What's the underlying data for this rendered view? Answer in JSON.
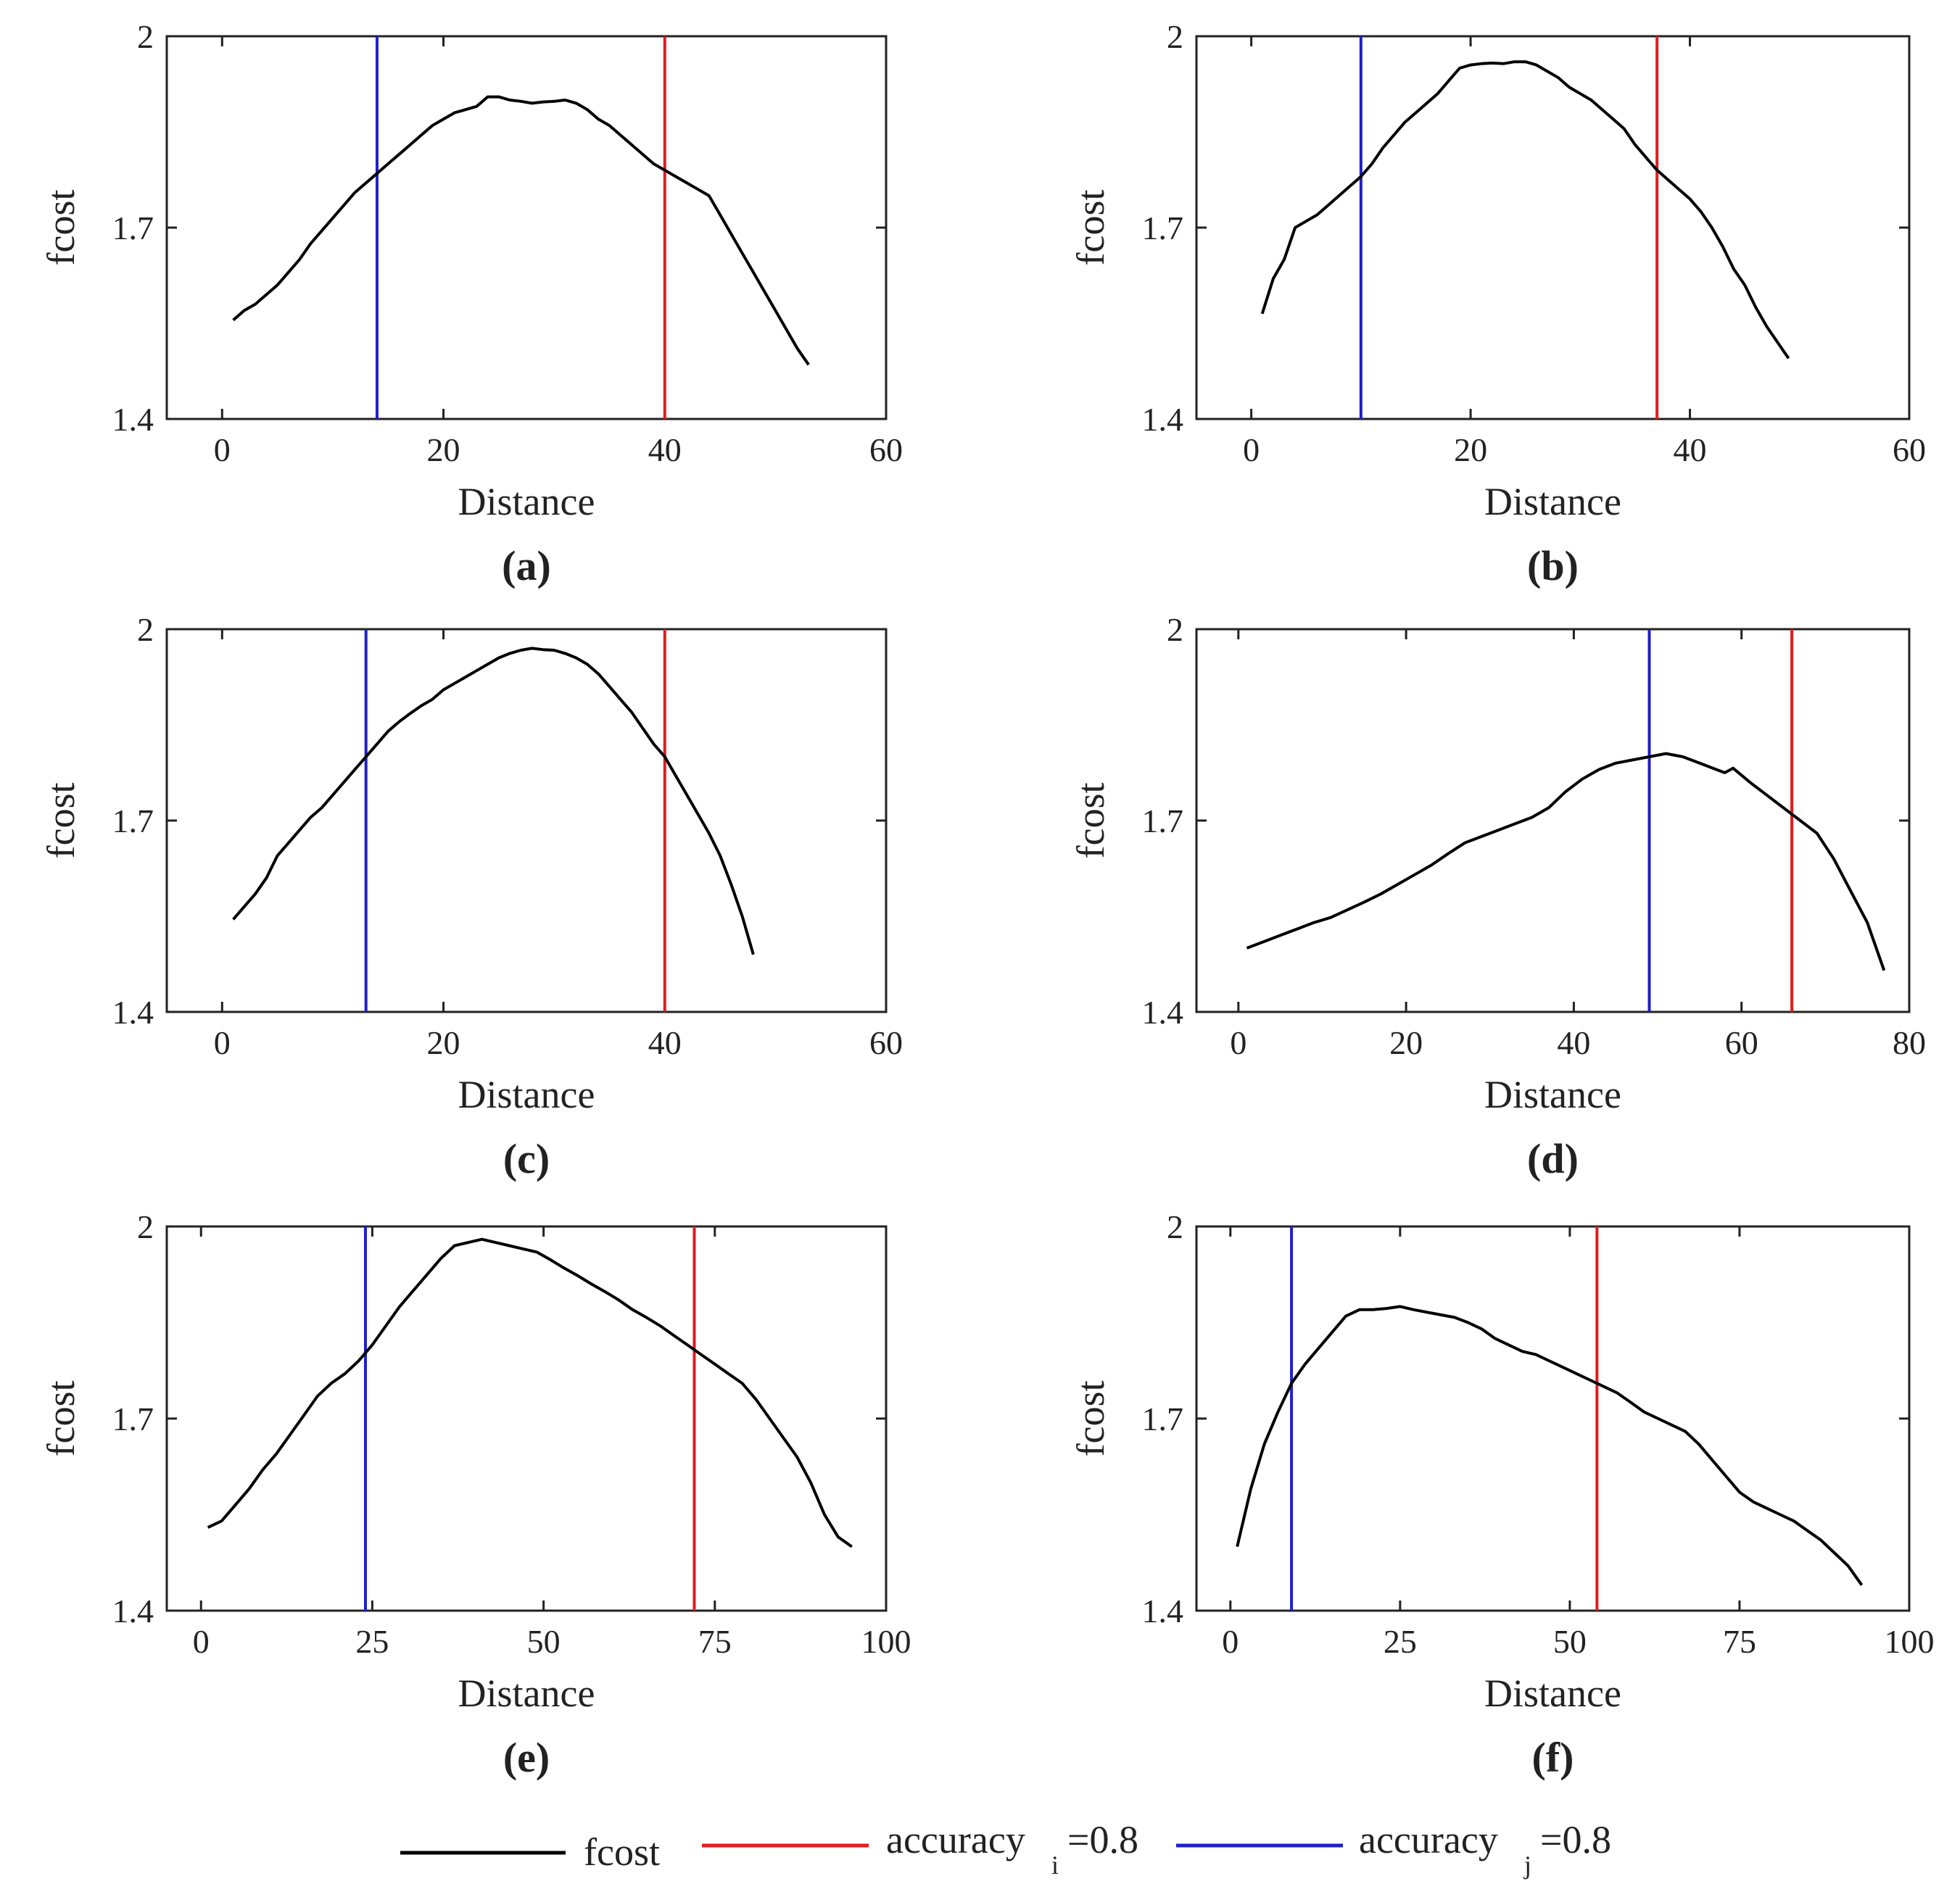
{
  "colors": {
    "fcost": "#000000",
    "accuracy_i": "#e41a1c",
    "accuracy_j": "#1f1fcc"
  },
  "legend": {
    "fcost": "fcost",
    "acc_i_main": "accuracy",
    "acc_i_sub": "i",
    "acc_i_rest": "=0.8",
    "acc_j_main": "accuracy",
    "acc_j_sub": "j",
    "acc_j_rest": "=0.8"
  },
  "chart_data": [
    {
      "panel": "(a)",
      "type": "line",
      "xlabel": "Distance",
      "ylabel": "fcost",
      "xlim": [
        -5,
        60
      ],
      "ylim": [
        1.4,
        2.0
      ],
      "xticks": [
        0,
        20,
        40,
        60
      ],
      "yticks": [
        1.4,
        1.7,
        2.0
      ],
      "ytick_labels": [
        "1.4",
        "1.7",
        "2"
      ],
      "vline_j": 14,
      "vline_i": 40,
      "series": [
        {
          "name": "fcost",
          "x": [
            1,
            2,
            3,
            4,
            5,
            6,
            7,
            8,
            9,
            10,
            11,
            12,
            13,
            14,
            15,
            16,
            17,
            18,
            19,
            20,
            21,
            22,
            23,
            24,
            25,
            26,
            27,
            28,
            29,
            30,
            31,
            32,
            33,
            34,
            35,
            36,
            37,
            38,
            39,
            40,
            41,
            42,
            43,
            44,
            45,
            46,
            47,
            48,
            49,
            50,
            51,
            52,
            53
          ],
          "y": [
            1.555,
            1.57,
            1.58,
            1.595,
            1.61,
            1.63,
            1.65,
            1.675,
            1.695,
            1.715,
            1.735,
            1.755,
            1.77,
            1.785,
            1.8,
            1.815,
            1.83,
            1.845,
            1.86,
            1.87,
            1.88,
            1.885,
            1.89,
            1.905,
            1.905,
            1.9,
            1.898,
            1.895,
            1.897,
            1.898,
            1.9,
            1.895,
            1.885,
            1.87,
            1.86,
            1.845,
            1.83,
            1.815,
            1.8,
            1.79,
            1.78,
            1.77,
            1.76,
            1.75,
            1.72,
            1.69,
            1.66,
            1.63,
            1.6,
            1.57,
            1.54,
            1.51,
            1.485
          ]
        }
      ]
    },
    {
      "panel": "(b)",
      "type": "line",
      "xlabel": "Distance",
      "ylabel": "fcost",
      "xlim": [
        -5,
        60
      ],
      "ylim": [
        1.4,
        2.0
      ],
      "xticks": [
        0,
        20,
        40,
        60
      ],
      "yticks": [
        1.4,
        1.7,
        2.0
      ],
      "ytick_labels": [
        "1.4",
        "1.7",
        "2"
      ],
      "vline_j": 10,
      "vline_i": 37,
      "series": [
        {
          "name": "fcost",
          "x": [
            1,
            2,
            3,
            4,
            5,
            6,
            7,
            8,
            9,
            10,
            11,
            12,
            13,
            14,
            15,
            16,
            17,
            18,
            19,
            20,
            21,
            22,
            23,
            24,
            25,
            26,
            27,
            28,
            29,
            30,
            31,
            32,
            33,
            34,
            35,
            36,
            37,
            38,
            39,
            40,
            41,
            42,
            43,
            44,
            45,
            46,
            47,
            48,
            49
          ],
          "y": [
            1.565,
            1.62,
            1.65,
            1.7,
            1.71,
            1.72,
            1.735,
            1.75,
            1.765,
            1.78,
            1.8,
            1.825,
            1.845,
            1.865,
            1.88,
            1.895,
            1.91,
            1.93,
            1.95,
            1.955,
            1.957,
            1.958,
            1.957,
            1.96,
            1.96,
            1.955,
            1.945,
            1.935,
            1.92,
            1.91,
            1.9,
            1.885,
            1.87,
            1.855,
            1.83,
            1.81,
            1.79,
            1.775,
            1.76,
            1.745,
            1.725,
            1.7,
            1.67,
            1.635,
            1.61,
            1.575,
            1.545,
            1.52,
            1.495
          ]
        }
      ]
    },
    {
      "panel": "(c)",
      "type": "line",
      "xlabel": "Distance",
      "ylabel": "fcost",
      "xlim": [
        -5,
        60
      ],
      "ylim": [
        1.4,
        2.0
      ],
      "xticks": [
        0,
        20,
        40,
        60
      ],
      "yticks": [
        1.4,
        1.7,
        2.0
      ],
      "ytick_labels": [
        "1.4",
        "1.7",
        "2"
      ],
      "vline_j": 13,
      "vline_i": 40,
      "series": [
        {
          "name": "fcost",
          "x": [
            1,
            2,
            3,
            4,
            5,
            6,
            7,
            8,
            9,
            10,
            11,
            12,
            13,
            14,
            15,
            16,
            17,
            18,
            19,
            20,
            21,
            22,
            23,
            24,
            25,
            26,
            27,
            28,
            29,
            30,
            31,
            32,
            33,
            34,
            35,
            36,
            37,
            38,
            39,
            40,
            41,
            42,
            43,
            44,
            45,
            46,
            47,
            48
          ],
          "y": [
            1.545,
            1.565,
            1.585,
            1.61,
            1.645,
            1.665,
            1.685,
            1.705,
            1.72,
            1.74,
            1.76,
            1.78,
            1.8,
            1.82,
            1.84,
            1.855,
            1.868,
            1.88,
            1.89,
            1.905,
            1.915,
            1.925,
            1.935,
            1.945,
            1.955,
            1.962,
            1.967,
            1.97,
            1.968,
            1.967,
            1.962,
            1.955,
            1.945,
            1.93,
            1.91,
            1.89,
            1.87,
            1.845,
            1.82,
            1.8,
            1.77,
            1.74,
            1.71,
            1.68,
            1.645,
            1.6,
            1.55,
            1.49
          ]
        }
      ]
    },
    {
      "panel": "(d)",
      "type": "line",
      "xlabel": "Distance",
      "ylabel": "fcost",
      "xlim": [
        -5,
        80
      ],
      "ylim": [
        1.4,
        2.0
      ],
      "xticks": [
        0,
        20,
        40,
        60,
        80
      ],
      "yticks": [
        1.4,
        1.7,
        2.0
      ],
      "ytick_labels": [
        "1.4",
        "1.7",
        "2"
      ],
      "vline_j": 49,
      "vline_i": 66,
      "series": [
        {
          "name": "fcost",
          "x": [
            1,
            3,
            5,
            7,
            9,
            11,
            13,
            15,
            17,
            19,
            21,
            23,
            25,
            27,
            29,
            31,
            33,
            35,
            37,
            39,
            41,
            43,
            45,
            47,
            49,
            51,
            53,
            55,
            57,
            58,
            59,
            61,
            63,
            65,
            67,
            69,
            71,
            73,
            75,
            77
          ],
          "y": [
            1.5,
            1.51,
            1.52,
            1.53,
            1.54,
            1.548,
            1.56,
            1.572,
            1.585,
            1.6,
            1.615,
            1.63,
            1.648,
            1.665,
            1.675,
            1.685,
            1.695,
            1.705,
            1.72,
            1.745,
            1.765,
            1.78,
            1.79,
            1.795,
            1.8,
            1.805,
            1.8,
            1.79,
            1.78,
            1.775,
            1.782,
            1.76,
            1.74,
            1.72,
            1.7,
            1.68,
            1.64,
            1.59,
            1.54,
            1.465
          ]
        }
      ]
    },
    {
      "panel": "(e)",
      "type": "line",
      "xlabel": "Distance",
      "ylabel": "fcost",
      "xlim": [
        -5,
        100
      ],
      "ylim": [
        1.4,
        2.0
      ],
      "xticks": [
        0,
        25,
        50,
        75,
        100
      ],
      "yticks": [
        1.4,
        1.7,
        2.0
      ],
      "ytick_labels": [
        "1.4",
        "1.7",
        "2"
      ],
      "vline_j": 24,
      "vline_i": 72,
      "series": [
        {
          "name": "fcost",
          "x": [
            1,
            3,
            5,
            7,
            9,
            11,
            13,
            15,
            17,
            19,
            21,
            23,
            25,
            27,
            29,
            31,
            33,
            35,
            37,
            39,
            41,
            43,
            45,
            47,
            49,
            51,
            53,
            55,
            57,
            59,
            61,
            63,
            65,
            67,
            69,
            71,
            73,
            75,
            77,
            79,
            81,
            83,
            85,
            87,
            89,
            91,
            93,
            95
          ],
          "y": [
            1.53,
            1.54,
            1.565,
            1.59,
            1.62,
            1.645,
            1.675,
            1.705,
            1.735,
            1.755,
            1.77,
            1.79,
            1.815,
            1.845,
            1.875,
            1.9,
            1.925,
            1.95,
            1.97,
            1.975,
            1.98,
            1.975,
            1.97,
            1.965,
            1.96,
            1.948,
            1.935,
            1.923,
            1.91,
            1.898,
            1.885,
            1.87,
            1.858,
            1.845,
            1.83,
            1.815,
            1.8,
            1.785,
            1.77,
            1.755,
            1.73,
            1.7,
            1.67,
            1.64,
            1.6,
            1.55,
            1.515,
            1.5
          ]
        }
      ]
    },
    {
      "panel": "(f)",
      "type": "line",
      "xlabel": "Distance",
      "ylabel": "fcost",
      "xlim": [
        -5,
        100
      ],
      "ylim": [
        1.4,
        2.0
      ],
      "xticks": [
        0,
        25,
        50,
        75,
        100
      ],
      "yticks": [
        1.4,
        1.7,
        2.0
      ],
      "ytick_labels": [
        "1.4",
        "1.7",
        "2"
      ],
      "vline_j": 9,
      "vline_i": 54,
      "series": [
        {
          "name": "fcost",
          "x": [
            1,
            3,
            5,
            7,
            9,
            11,
            13,
            15,
            17,
            19,
            21,
            23,
            25,
            27,
            29,
            31,
            33,
            35,
            37,
            39,
            41,
            43,
            45,
            47,
            49,
            51,
            53,
            55,
            57,
            59,
            61,
            63,
            65,
            67,
            69,
            71,
            73,
            75,
            77,
            79,
            81,
            83,
            85,
            87,
            89,
            91,
            93
          ],
          "y": [
            1.5,
            1.59,
            1.66,
            1.71,
            1.755,
            1.785,
            1.81,
            1.835,
            1.86,
            1.87,
            1.87,
            1.872,
            1.875,
            1.87,
            1.866,
            1.862,
            1.858,
            1.85,
            1.84,
            1.825,
            1.815,
            1.805,
            1.8,
            1.79,
            1.78,
            1.77,
            1.76,
            1.75,
            1.74,
            1.725,
            1.71,
            1.7,
            1.69,
            1.68,
            1.66,
            1.635,
            1.61,
            1.585,
            1.57,
            1.56,
            1.55,
            1.54,
            1.525,
            1.51,
            1.49,
            1.47,
            1.44
          ]
        }
      ]
    }
  ]
}
